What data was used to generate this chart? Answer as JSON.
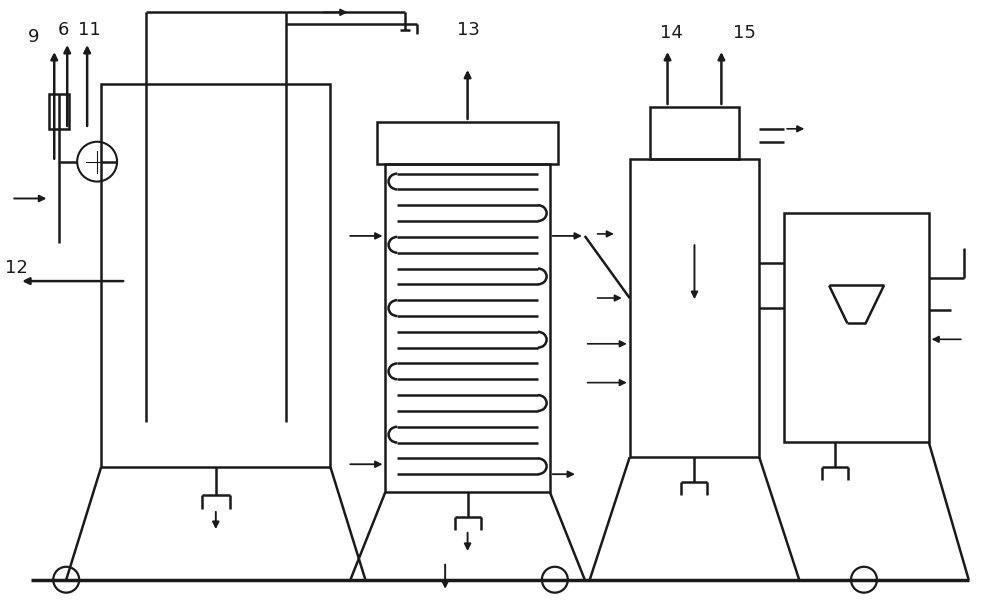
{
  "bg_color": "#ffffff",
  "line_color": "#1a1a1a",
  "line_width": 1.8,
  "label_fontsize": 13
}
